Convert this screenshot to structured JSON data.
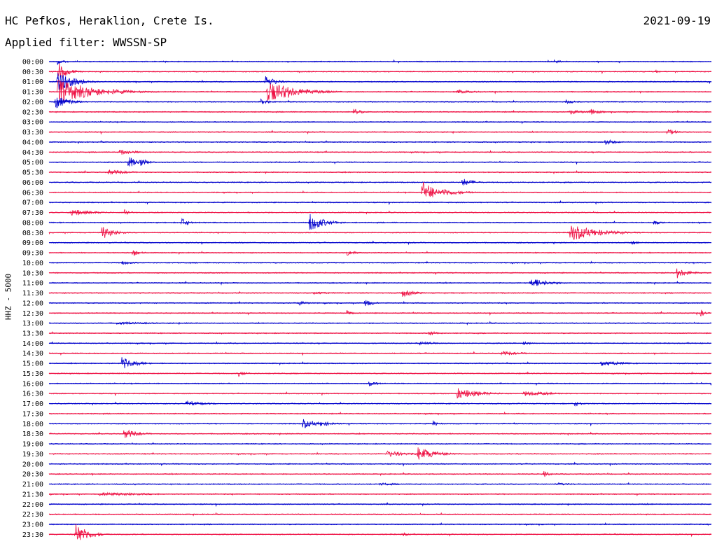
{
  "header": {
    "station": "HC Pefkos, Heraklion, Crete Is.",
    "filter": "Applied filter: WWSSN-SP",
    "date": "2021-09-19"
  },
  "chart_data": {
    "type": "line",
    "title": "HC Pefkos, Heraklion, Crete Is.",
    "subtitle": "Applied filter: WWSSN-SP",
    "date": "2021-09-19",
    "ylabel": "HHZ - 5000",
    "grid": false,
    "colors": {
      "even": "#0000cc",
      "odd": "#ee1144"
    },
    "rows": [
      {
        "label": "00:00",
        "color": "#0000cc",
        "events": [
          {
            "t": 0.4,
            "amp": 6,
            "width": 0.3
          },
          {
            "t": 23.0,
            "amp": 3,
            "width": 0.2
          }
        ]
      },
      {
        "label": "00:30",
        "color": "#ee1144",
        "events": [
          {
            "t": 0.4,
            "amp": 14,
            "width": 0.4
          },
          {
            "t": 27.5,
            "amp": 3,
            "width": 0.2
          }
        ]
      },
      {
        "label": "01:00",
        "color": "#0000cc",
        "events": [
          {
            "t": 0.4,
            "amp": 20,
            "width": 0.6
          },
          {
            "t": 9.8,
            "amp": 10,
            "width": 0.4
          }
        ]
      },
      {
        "label": "01:30",
        "color": "#ee1144",
        "events": [
          {
            "t": 0.4,
            "amp": 18,
            "width": 1.5
          },
          {
            "t": 9.9,
            "amp": 16,
            "width": 1.2
          },
          {
            "t": 18.5,
            "amp": 3,
            "width": 0.8
          }
        ]
      },
      {
        "label": "02:00",
        "color": "#0000cc",
        "events": [
          {
            "t": 0.3,
            "amp": 10,
            "width": 0.6
          },
          {
            "t": 9.6,
            "amp": 4,
            "width": 0.4
          },
          {
            "t": 23.4,
            "amp": 3,
            "width": 0.5
          }
        ]
      },
      {
        "label": "02:30",
        "color": "#ee1144",
        "events": [
          {
            "t": 13.8,
            "amp": 6,
            "width": 0.3
          },
          {
            "t": 23.6,
            "amp": 4,
            "width": 0.6
          },
          {
            "t": 24.5,
            "amp": 5,
            "width": 0.4
          }
        ]
      },
      {
        "label": "03:00",
        "color": "#0000cc",
        "events": []
      },
      {
        "label": "03:30",
        "color": "#ee1144",
        "events": [
          {
            "t": 28.0,
            "amp": 5,
            "width": 0.4
          }
        ]
      },
      {
        "label": "04:00",
        "color": "#0000cc",
        "events": [
          {
            "t": 25.2,
            "amp": 5,
            "width": 0.4
          }
        ]
      },
      {
        "label": "04:30",
        "color": "#ee1144",
        "events": [
          {
            "t": 3.2,
            "amp": 5,
            "width": 0.6
          }
        ]
      },
      {
        "label": "05:00",
        "color": "#0000cc",
        "events": [
          {
            "t": 3.6,
            "amp": 14,
            "width": 0.3
          },
          {
            "t": 4.1,
            "amp": 6,
            "width": 0.4
          }
        ]
      },
      {
        "label": "05:30",
        "color": "#ee1144",
        "events": [
          {
            "t": 2.7,
            "amp": 4,
            "width": 0.8
          }
        ]
      },
      {
        "label": "06:00",
        "color": "#0000cc",
        "events": [
          {
            "t": 18.7,
            "amp": 6,
            "width": 0.5
          }
        ]
      },
      {
        "label": "06:30",
        "color": "#ee1144",
        "events": [
          {
            "t": 16.9,
            "amp": 18,
            "width": 0.5
          },
          {
            "t": 17.8,
            "amp": 6,
            "width": 0.8
          }
        ]
      },
      {
        "label": "07:00",
        "color": "#0000cc",
        "events": []
      },
      {
        "label": "07:30",
        "color": "#ee1144",
        "events": [
          {
            "t": 1.0,
            "amp": 5,
            "width": 1.0
          },
          {
            "t": 3.4,
            "amp": 7,
            "width": 0.2
          }
        ]
      },
      {
        "label": "08:00",
        "color": "#0000cc",
        "events": [
          {
            "t": 6.0,
            "amp": 7,
            "width": 0.3
          },
          {
            "t": 11.8,
            "amp": 14,
            "width": 0.6
          },
          {
            "t": 27.4,
            "amp": 4,
            "width": 0.3
          }
        ]
      },
      {
        "label": "08:30",
        "color": "#ee1144",
        "events": [
          {
            "t": 2.4,
            "amp": 10,
            "width": 0.5
          },
          {
            "t": 23.6,
            "amp": 12,
            "width": 1.2
          }
        ]
      },
      {
        "label": "09:00",
        "color": "#0000cc",
        "events": [
          {
            "t": 26.4,
            "amp": 3,
            "width": 0.3
          }
        ]
      },
      {
        "label": "09:30",
        "color": "#ee1144",
        "events": [
          {
            "t": 3.8,
            "amp": 6,
            "width": 0.3
          },
          {
            "t": 13.5,
            "amp": 5,
            "width": 0.3
          }
        ]
      },
      {
        "label": "10:00",
        "color": "#0000cc",
        "events": [
          {
            "t": 3.3,
            "amp": 3,
            "width": 0.5
          }
        ]
      },
      {
        "label": "10:30",
        "color": "#ee1144",
        "events": [
          {
            "t": 28.4,
            "amp": 7,
            "width": 0.6
          }
        ]
      },
      {
        "label": "11:00",
        "color": "#0000cc",
        "events": [
          {
            "t": 21.8,
            "amp": 7,
            "width": 0.8
          }
        ]
      },
      {
        "label": "11:30",
        "color": "#ee1144",
        "events": [
          {
            "t": 16.0,
            "amp": 6,
            "width": 0.5
          },
          {
            "t": 12.0,
            "amp": 2,
            "width": 1.0
          }
        ]
      },
      {
        "label": "12:00",
        "color": "#0000cc",
        "events": [
          {
            "t": 11.3,
            "amp": 4,
            "width": 0.4
          },
          {
            "t": 14.3,
            "amp": 7,
            "width": 0.3
          }
        ]
      },
      {
        "label": "12:30",
        "color": "#ee1144",
        "events": [
          {
            "t": 13.5,
            "amp": 5,
            "width": 0.2
          },
          {
            "t": 29.5,
            "amp": 6,
            "width": 0.2
          }
        ]
      },
      {
        "label": "13:00",
        "color": "#0000cc",
        "events": [
          {
            "t": 3.0,
            "amp": 2,
            "width": 2.0
          }
        ]
      },
      {
        "label": "13:30",
        "color": "#ee1144",
        "events": [
          {
            "t": 17.2,
            "amp": 4,
            "width": 0.4
          }
        ]
      },
      {
        "label": "14:00",
        "color": "#0000cc",
        "events": [
          {
            "t": 16.8,
            "amp": 3,
            "width": 0.8
          },
          {
            "t": 21.5,
            "amp": 5,
            "width": 0.2
          }
        ]
      },
      {
        "label": "14:30",
        "color": "#ee1144",
        "events": [
          {
            "t": 20.5,
            "amp": 3,
            "width": 1.0
          }
        ]
      },
      {
        "label": "15:00",
        "color": "#0000cc",
        "events": [
          {
            "t": 3.3,
            "amp": 9,
            "width": 0.6
          },
          {
            "t": 25.0,
            "amp": 4,
            "width": 1.0
          }
        ]
      },
      {
        "label": "15:30",
        "color": "#ee1144",
        "events": [
          {
            "t": 8.6,
            "amp": 5,
            "width": 0.3
          }
        ]
      },
      {
        "label": "16:00",
        "color": "#0000cc",
        "events": [
          {
            "t": 14.5,
            "amp": 4,
            "width": 0.4
          },
          {
            "t": 30.0,
            "amp": 5,
            "width": 0.1
          }
        ]
      },
      {
        "label": "16:30",
        "color": "#ee1144",
        "events": [
          {
            "t": 18.5,
            "amp": 8,
            "width": 1.0
          },
          {
            "t": 21.5,
            "amp": 4,
            "width": 1.2
          }
        ]
      },
      {
        "label": "17:00",
        "color": "#0000cc",
        "events": [
          {
            "t": 6.2,
            "amp": 4,
            "width": 1.0
          },
          {
            "t": 23.8,
            "amp": 4,
            "width": 0.3
          }
        ]
      },
      {
        "label": "17:30",
        "color": "#ee1144",
        "events": []
      },
      {
        "label": "18:00",
        "color": "#0000cc",
        "events": [
          {
            "t": 11.5,
            "amp": 7,
            "width": 0.6
          },
          {
            "t": 12.3,
            "amp": 4,
            "width": 0.6
          },
          {
            "t": 17.4,
            "amp": 4,
            "width": 0.3
          }
        ]
      },
      {
        "label": "18:30",
        "color": "#ee1144",
        "events": [
          {
            "t": 3.4,
            "amp": 7,
            "width": 0.6
          }
        ]
      },
      {
        "label": "19:00",
        "color": "#0000cc",
        "events": []
      },
      {
        "label": "19:30",
        "color": "#ee1144",
        "events": [
          {
            "t": 15.3,
            "amp": 5,
            "width": 0.8
          },
          {
            "t": 16.7,
            "amp": 10,
            "width": 0.8
          }
        ]
      },
      {
        "label": "20:00",
        "color": "#0000cc",
        "events": []
      },
      {
        "label": "20:30",
        "color": "#ee1144",
        "events": [
          {
            "t": 22.4,
            "amp": 5,
            "width": 0.3
          }
        ]
      },
      {
        "label": "21:00",
        "color": "#0000cc",
        "events": [
          {
            "t": 15.0,
            "amp": 2,
            "width": 1.0
          },
          {
            "t": 23.0,
            "amp": 2,
            "width": 1.0
          }
        ]
      },
      {
        "label": "21:30",
        "color": "#ee1144",
        "events": [
          {
            "t": 2.3,
            "amp": 3,
            "width": 2.2
          }
        ]
      },
      {
        "label": "22:00",
        "color": "#0000cc",
        "events": []
      },
      {
        "label": "22:30",
        "color": "#ee1144",
        "events": []
      },
      {
        "label": "23:00",
        "color": "#0000cc",
        "events": []
      },
      {
        "label": "23:30",
        "color": "#ee1144",
        "events": [
          {
            "t": 1.2,
            "amp": 18,
            "width": 0.5
          },
          {
            "t": 16.0,
            "amp": 3,
            "width": 0.3
          }
        ]
      }
    ],
    "x_range_minutes": [
      0,
      30
    ]
  }
}
